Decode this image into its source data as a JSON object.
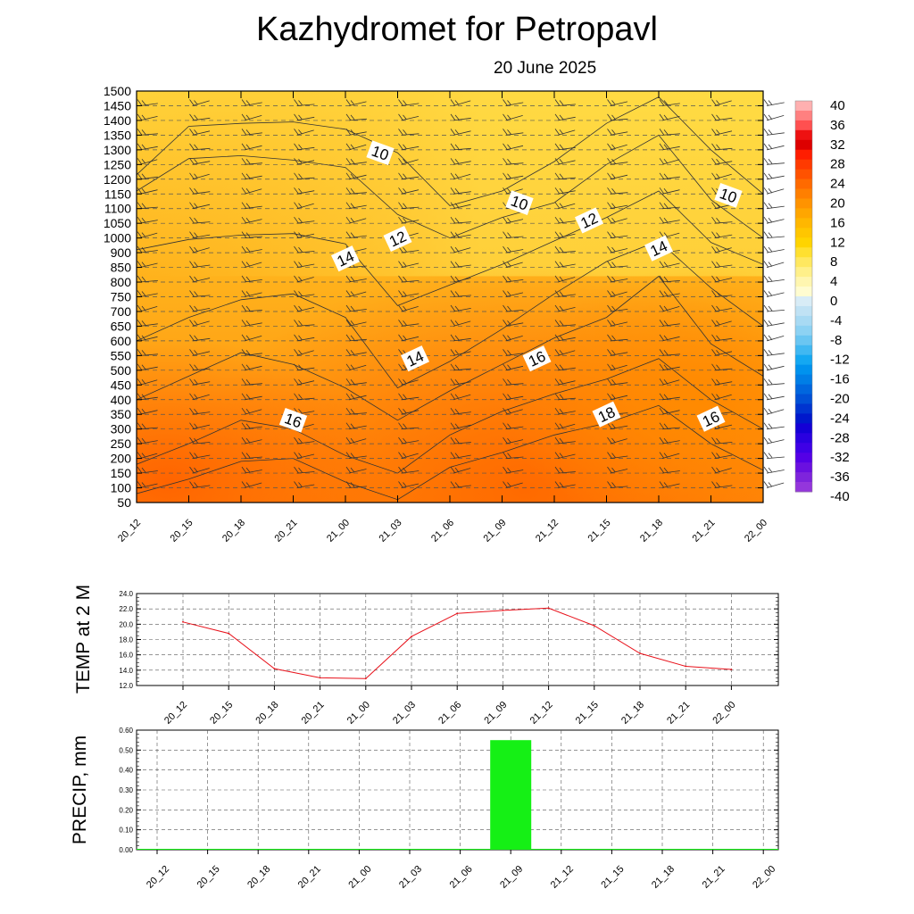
{
  "title": "Kazhydromet  for Petropavl",
  "subtitle": "20 June 2025",
  "time_labels": [
    "20_12",
    "20_15",
    "20_18",
    "20_21",
    "21_00",
    "21_03",
    "21_06",
    "21_09",
    "21_12",
    "21_15",
    "21_18",
    "21_21",
    "22_00"
  ],
  "colors": {
    "temp_line": "#e8111a",
    "precip_bar": "#15f015",
    "warm_low": "#fff1a8",
    "warm_high": "#ff3a00"
  },
  "chart_data": [
    {
      "type": "heatmap",
      "title": "Kazhydromet  for Petropavl",
      "subtitle": "20 June 2025",
      "xlabel": "",
      "ylabel": "",
      "x": [
        "20_12",
        "20_15",
        "20_18",
        "20_21",
        "21_00",
        "21_03",
        "21_06",
        "21_09",
        "21_12",
        "21_15",
        "21_18",
        "21_21",
        "22_00"
      ],
      "y_ticks": [
        1500,
        1450,
        1400,
        1350,
        1300,
        1250,
        1200,
        1150,
        1100,
        1050,
        1000,
        900,
        850,
        800,
        750,
        700,
        650,
        600,
        550,
        500,
        450,
        400,
        350,
        300,
        250,
        200,
        150,
        100,
        50
      ],
      "colorbar_ticks": [
        40,
        36,
        32,
        28,
        24,
        20,
        16,
        12,
        8,
        4,
        0,
        -4,
        -8,
        -12,
        -16,
        -20,
        -24,
        -28,
        -32,
        -36,
        -40
      ],
      "contour_labels": [
        {
          "text": "10",
          "time": "21_02",
          "level": 1290
        },
        {
          "text": "12",
          "time": "21_03",
          "level": 995
        },
        {
          "text": "14",
          "time": "21_00",
          "level": 880
        },
        {
          "text": "10",
          "time": "21_10",
          "level": 1120
        },
        {
          "text": "12",
          "time": "21_14",
          "level": 1060
        },
        {
          "text": "14",
          "time": "21_18",
          "level": 930
        },
        {
          "text": "10",
          "time": "21_22",
          "level": 1145
        },
        {
          "text": "14",
          "time": "21_04",
          "level": 540
        },
        {
          "text": "16",
          "time": "21_11",
          "level": 540
        },
        {
          "text": "16",
          "time": "20_21",
          "level": 330
        },
        {
          "text": "18",
          "time": "21_15",
          "level": 350
        },
        {
          "text": "16",
          "time": "21_21",
          "level": 335
        }
      ]
    },
    {
      "type": "line",
      "ylabel": "TEMP at 2 M",
      "x": [
        "20_12",
        "20_15",
        "20_18",
        "20_21",
        "21_00",
        "21_03",
        "21_06",
        "21_09",
        "21_12",
        "21_15",
        "21_18",
        "21_21",
        "22_00"
      ],
      "y_ticks": [
        "24.0",
        "22.0",
        "20.0",
        "18.0",
        "16.0",
        "14.0",
        "12.0"
      ],
      "ylim": [
        12.0,
        24.0
      ],
      "series": [
        {
          "values": [
            20.3,
            18.8,
            14.2,
            13.0,
            12.9,
            18.4,
            21.4,
            21.8,
            22.1,
            19.8,
            16.2,
            14.5,
            14.1
          ]
        }
      ]
    },
    {
      "type": "bar",
      "ylabel": "PRECIP, mm",
      "x": [
        "20_12",
        "20_15",
        "20_18",
        "20_21",
        "21_00",
        "21_03",
        "21_06",
        "21_09",
        "21_12",
        "21_15",
        "21_18",
        "21_21",
        "22_00"
      ],
      "y_ticks": [
        "0.60",
        "0.50",
        "0.40",
        "0.30",
        "0.20",
        "0.10",
        "0.00"
      ],
      "ylim": [
        0.0,
        0.6
      ],
      "values": [
        0,
        0,
        0,
        0,
        0,
        0,
        0,
        0.55,
        0,
        0,
        0,
        0,
        0
      ]
    }
  ]
}
